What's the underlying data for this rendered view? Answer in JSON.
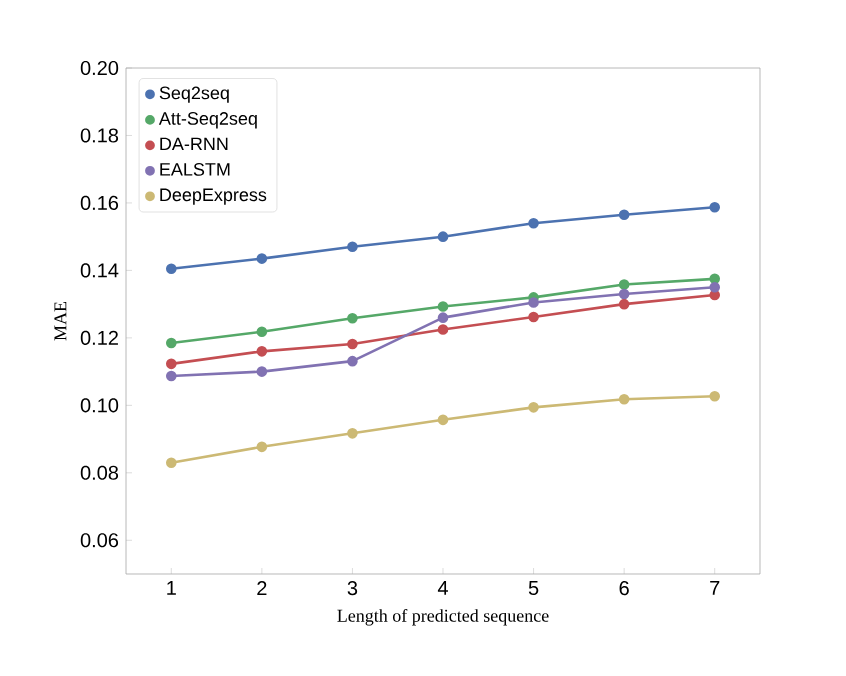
{
  "chart_data": {
    "type": "line",
    "xlabel": "Length of predicted sequence",
    "ylabel": "MAE",
    "x": [
      1,
      2,
      3,
      4,
      5,
      6,
      7
    ],
    "series": [
      {
        "name": "Seq2seq",
        "color": "#4c72b0",
        "values": [
          0.1405,
          0.1435,
          0.147,
          0.15,
          0.154,
          0.1565,
          0.1587
        ]
      },
      {
        "name": "Att-Seq2seq",
        "color": "#55a868",
        "values": [
          0.1185,
          0.1218,
          0.1258,
          0.1293,
          0.132,
          0.1358,
          0.1375
        ]
      },
      {
        "name": "DA-RNN",
        "color": "#c44e52",
        "values": [
          0.1123,
          0.116,
          0.1182,
          0.1225,
          0.1262,
          0.13,
          0.1327
        ]
      },
      {
        "name": "EALSTM",
        "color": "#8172b2",
        "values": [
          0.1087,
          0.11,
          0.1131,
          0.126,
          0.1305,
          0.133,
          0.135
        ]
      },
      {
        "name": "DeepExpress",
        "color": "#ccb974",
        "values": [
          0.083,
          0.0877,
          0.0917,
          0.0957,
          0.0994,
          0.1018,
          0.1027
        ]
      }
    ],
    "xlim": [
      0.5,
      7.5
    ],
    "ylim": [
      0.05,
      0.2
    ],
    "xticks": [
      1,
      2,
      3,
      4,
      5,
      6,
      7
    ],
    "yticks": [
      {
        "value": 0.06,
        "label": "0.06"
      },
      {
        "value": 0.08,
        "label": "0.08"
      },
      {
        "value": 0.1,
        "label": "0.10"
      },
      {
        "value": 0.12,
        "label": "0.12"
      },
      {
        "value": 0.14,
        "label": "0.14"
      },
      {
        "value": 0.16,
        "label": "0.16"
      },
      {
        "value": 0.18,
        "label": "0.18"
      },
      {
        "value": 0.2,
        "label": "0.20"
      }
    ],
    "legend": "top left",
    "marker": "circle",
    "line_style": "solid",
    "grid": false
  }
}
